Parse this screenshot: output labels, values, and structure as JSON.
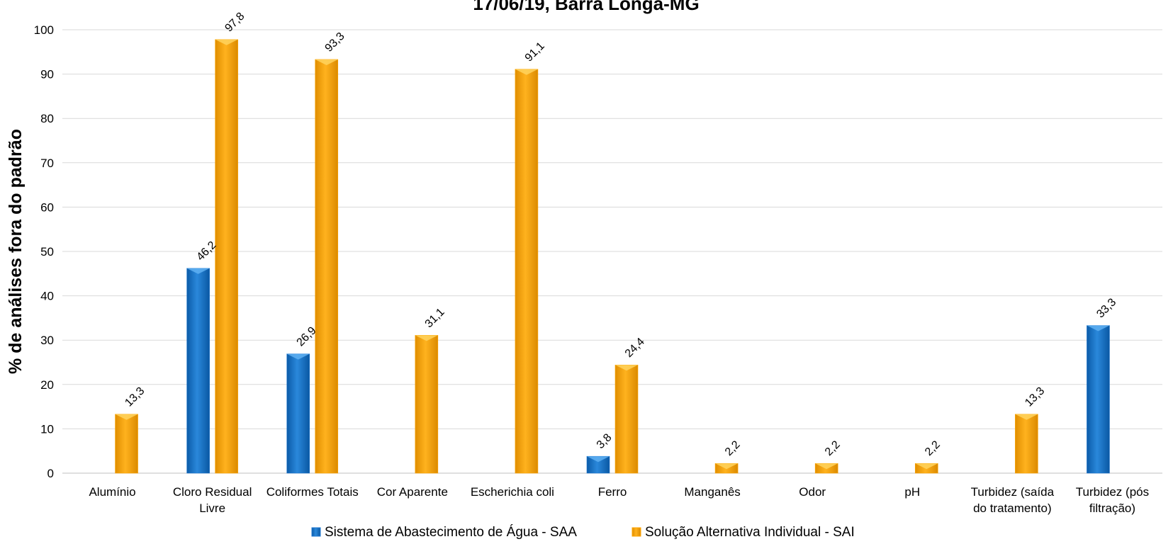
{
  "chart_data": {
    "type": "bar",
    "title": "17/06/19, Barra Longa-MG",
    "xlabel": "",
    "ylabel": "% de análises fora do padrão",
    "ylim": [
      0,
      100
    ],
    "yticks": [
      0,
      10,
      20,
      30,
      40,
      50,
      60,
      70,
      80,
      90,
      100
    ],
    "grid": true,
    "legend_position": "bottom",
    "categories": [
      [
        "Alumínio"
      ],
      [
        "Cloro Residual",
        "Livre"
      ],
      [
        "Coliformes Totais"
      ],
      [
        "Cor Aparente"
      ],
      [
        "Escherichia coli"
      ],
      [
        "Ferro"
      ],
      [
        "Manganês"
      ],
      [
        "Odor"
      ],
      [
        "pH"
      ],
      [
        "Turbidez (saída",
        "do tratamento)"
      ],
      [
        "Turbidez (pós",
        "filtração)"
      ]
    ],
    "series": [
      {
        "name": "Sistema de Abastecimento de Água - SAA",
        "color": "#1F77D0",
        "values": [
          null,
          46.2,
          26.9,
          null,
          null,
          3.8,
          null,
          null,
          null,
          null,
          33.3
        ],
        "labels": [
          null,
          "46,2",
          "26,9",
          null,
          null,
          "3,8",
          null,
          null,
          null,
          null,
          "33,3"
        ]
      },
      {
        "name": "Solução Alternativa Individual - SAI",
        "color": "#FFA500",
        "values": [
          13.3,
          97.8,
          93.3,
          31.1,
          91.1,
          24.4,
          2.2,
          2.2,
          2.2,
          13.3,
          null
        ],
        "labels": [
          "13,3",
          "97,8",
          "93,3",
          "31,1",
          "91,1",
          "24,4",
          "2,2",
          "2,2",
          "2,2",
          "13,3",
          null
        ]
      }
    ]
  }
}
